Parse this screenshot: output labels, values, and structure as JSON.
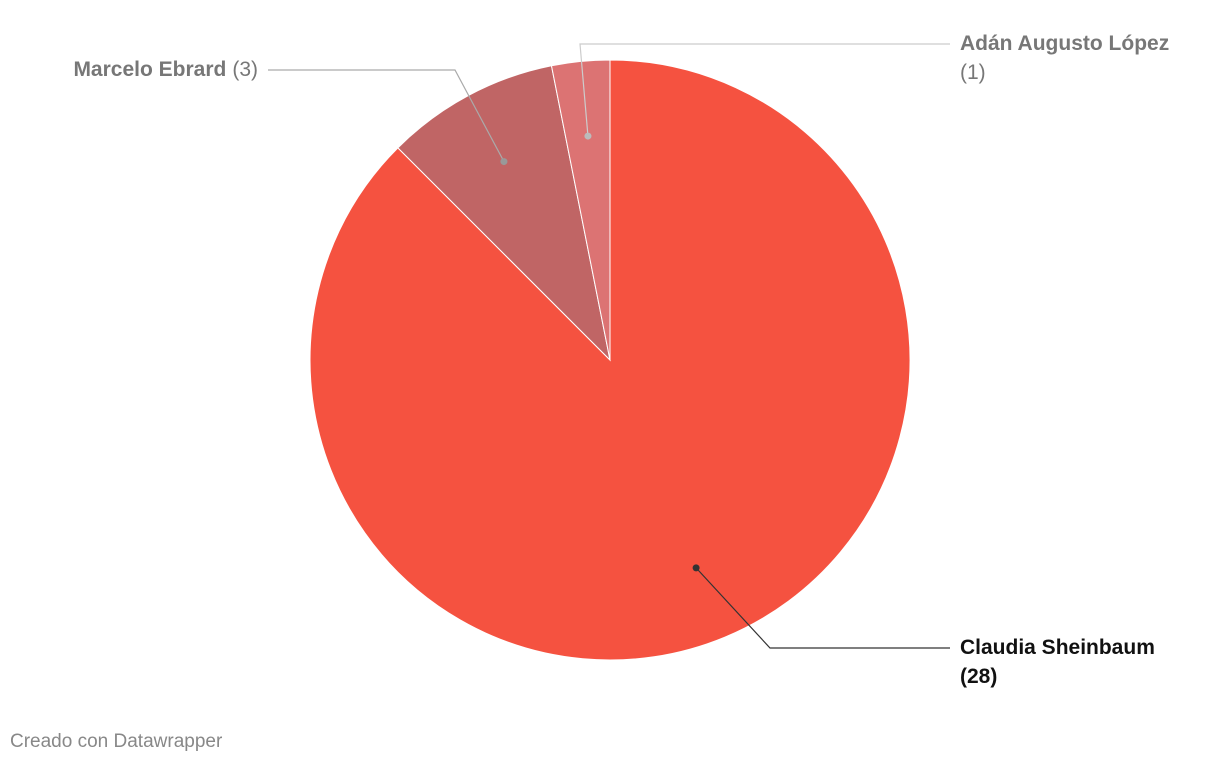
{
  "chart_data": {
    "type": "pie",
    "categories": [
      "Claudia Sheinbaum",
      "Marcelo Ebrard",
      "Adán Augusto López"
    ],
    "values": [
      28,
      3,
      1
    ],
    "value_labels": [
      "(28)",
      "(3)",
      "(1)"
    ],
    "colors": [
      "#f55240",
      "#c06565",
      "#dc7373"
    ],
    "credit": "Creado con Datawrapper"
  }
}
